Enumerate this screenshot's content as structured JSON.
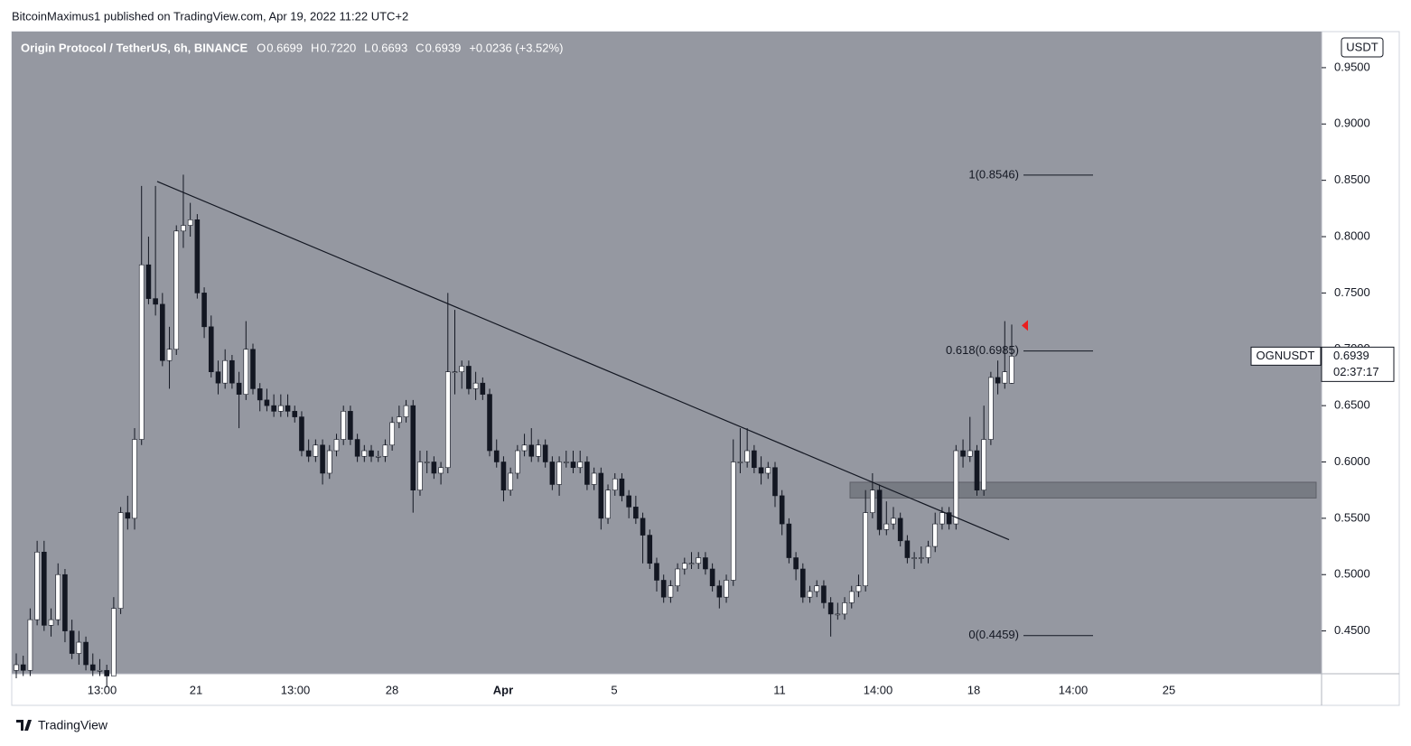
{
  "header": "BitcoinMaximus1 published on TradingView.com, Apr 19, 2022 11:22 UTC+2",
  "footer": "TradingView",
  "chart_data": {
    "type": "candlestick",
    "title": "Origin Protocol / TetherUS, 6h, BINANCE",
    "legend": [
      [
        "O",
        "0.6699"
      ],
      [
        "H",
        "0.7220"
      ],
      [
        "L",
        "0.6693"
      ],
      [
        "C",
        "0.6939"
      ]
    ],
    "change": "+0.0236 (+3.52%)",
    "axis_unit": "USDT",
    "symbol": "OGNUSDT",
    "last_price": {
      "value": 0.6939,
      "label": "0.6939"
    },
    "countdown": "02:37:17",
    "ylim": [
      0.412,
      0.982
    ],
    "yticks": [
      {
        "value": 0.45,
        "label": "0.4500"
      },
      {
        "value": 0.5,
        "label": "0.5000"
      },
      {
        "value": 0.55,
        "label": "0.5500"
      },
      {
        "value": 0.6,
        "label": "0.6000"
      },
      {
        "value": 0.65,
        "label": "0.6500"
      },
      {
        "value": 0.7,
        "label": "0.7000"
      },
      {
        "value": 0.75,
        "label": "0.7500"
      },
      {
        "value": 0.8,
        "label": "0.8000"
      },
      {
        "value": 0.85,
        "label": "0.8500"
      },
      {
        "value": 0.9,
        "label": "0.9000"
      },
      {
        "value": 0.95,
        "label": "0.9500"
      }
    ],
    "xticks": [
      "13:00",
      "21",
      "13:00",
      "28",
      "Apr",
      "5",
      "11",
      "14:00",
      "18",
      "14:00",
      "25"
    ],
    "up_color": "#ffffff",
    "down_color": "#131722",
    "fib_levels": [
      {
        "value": 0.8546,
        "label": "1(0.8546)"
      },
      {
        "value": 0.6985,
        "label": "0.618(0.6985)"
      },
      {
        "value": 0.4459,
        "label": "0(0.4459)"
      }
    ],
    "trendline": [
      0.849,
      0.531
    ],
    "zone": [
      0.568,
      0.582
    ],
    "candles": [
      [
        0.415,
        0.43,
        0.408,
        0.42
      ],
      [
        0.42,
        0.428,
        0.41,
        0.415
      ],
      [
        0.415,
        0.47,
        0.41,
        0.46
      ],
      [
        0.46,
        0.53,
        0.455,
        0.52
      ],
      [
        0.52,
        0.53,
        0.45,
        0.455
      ],
      [
        0.455,
        0.47,
        0.445,
        0.46
      ],
      [
        0.46,
        0.51,
        0.455,
        0.5
      ],
      [
        0.5,
        0.505,
        0.44,
        0.45
      ],
      [
        0.45,
        0.46,
        0.425,
        0.43
      ],
      [
        0.43,
        0.45,
        0.42,
        0.44
      ],
      [
        0.44,
        0.445,
        0.415,
        0.42
      ],
      [
        0.42,
        0.43,
        0.41,
        0.415
      ],
      [
        0.415,
        0.425,
        0.41,
        0.415
      ],
      [
        0.415,
        0.42,
        0.4,
        0.41
      ],
      [
        0.41,
        0.48,
        0.41,
        0.47
      ],
      [
        0.47,
        0.56,
        0.465,
        0.555
      ],
      [
        0.555,
        0.57,
        0.54,
        0.55
      ],
      [
        0.55,
        0.63,
        0.54,
        0.62
      ],
      [
        0.62,
        0.845,
        0.615,
        0.775
      ],
      [
        0.775,
        0.8,
        0.74,
        0.745
      ],
      [
        0.745,
        0.845,
        0.73,
        0.74
      ],
      [
        0.74,
        0.75,
        0.685,
        0.69
      ],
      [
        0.69,
        0.72,
        0.665,
        0.7
      ],
      [
        0.7,
        0.81,
        0.695,
        0.805
      ],
      [
        0.805,
        0.855,
        0.79,
        0.81
      ],
      [
        0.81,
        0.83,
        0.8,
        0.815
      ],
      [
        0.815,
        0.82,
        0.745,
        0.75
      ],
      [
        0.75,
        0.755,
        0.71,
        0.72
      ],
      [
        0.72,
        0.73,
        0.675,
        0.68
      ],
      [
        0.68,
        0.69,
        0.66,
        0.67
      ],
      [
        0.67,
        0.7,
        0.665,
        0.69
      ],
      [
        0.69,
        0.695,
        0.665,
        0.67
      ],
      [
        0.67,
        0.68,
        0.63,
        0.66
      ],
      [
        0.66,
        0.725,
        0.655,
        0.7
      ],
      [
        0.7,
        0.705,
        0.66,
        0.665
      ],
      [
        0.665,
        0.67,
        0.645,
        0.655
      ],
      [
        0.655,
        0.665,
        0.645,
        0.65
      ],
      [
        0.65,
        0.66,
        0.64,
        0.645
      ],
      [
        0.645,
        0.66,
        0.64,
        0.65
      ],
      [
        0.65,
        0.66,
        0.64,
        0.645
      ],
      [
        0.645,
        0.65,
        0.635,
        0.64
      ],
      [
        0.64,
        0.645,
        0.605,
        0.61
      ],
      [
        0.61,
        0.62,
        0.6,
        0.605
      ],
      [
        0.605,
        0.62,
        0.6,
        0.615
      ],
      [
        0.615,
        0.62,
        0.58,
        0.59
      ],
      [
        0.59,
        0.615,
        0.585,
        0.61
      ],
      [
        0.61,
        0.625,
        0.605,
        0.62
      ],
      [
        0.62,
        0.65,
        0.615,
        0.645
      ],
      [
        0.645,
        0.65,
        0.615,
        0.62
      ],
      [
        0.62,
        0.625,
        0.6,
        0.605
      ],
      [
        0.605,
        0.615,
        0.6,
        0.61
      ],
      [
        0.61,
        0.615,
        0.6,
        0.605
      ],
      [
        0.605,
        0.61,
        0.6,
        0.605
      ],
      [
        0.605,
        0.62,
        0.6,
        0.615
      ],
      [
        0.615,
        0.64,
        0.61,
        0.635
      ],
      [
        0.635,
        0.65,
        0.63,
        0.64
      ],
      [
        0.64,
        0.655,
        0.635,
        0.65
      ],
      [
        0.65,
        0.655,
        0.555,
        0.575
      ],
      [
        0.575,
        0.61,
        0.57,
        0.6
      ],
      [
        0.6,
        0.61,
        0.59,
        0.6
      ],
      [
        0.6,
        0.605,
        0.585,
        0.59
      ],
      [
        0.59,
        0.6,
        0.58,
        0.595
      ],
      [
        0.595,
        0.75,
        0.59,
        0.68
      ],
      [
        0.68,
        0.735,
        0.66,
        0.68
      ],
      [
        0.68,
        0.69,
        0.665,
        0.685
      ],
      [
        0.685,
        0.69,
        0.66,
        0.665
      ],
      [
        0.665,
        0.68,
        0.655,
        0.67
      ],
      [
        0.67,
        0.675,
        0.655,
        0.66
      ],
      [
        0.66,
        0.665,
        0.605,
        0.61
      ],
      [
        0.61,
        0.62,
        0.595,
        0.6
      ],
      [
        0.6,
        0.605,
        0.565,
        0.575
      ],
      [
        0.575,
        0.595,
        0.57,
        0.59
      ],
      [
        0.59,
        0.615,
        0.585,
        0.61
      ],
      [
        0.61,
        0.625,
        0.605,
        0.615
      ],
      [
        0.615,
        0.63,
        0.6,
        0.605
      ],
      [
        0.605,
        0.62,
        0.6,
        0.615
      ],
      [
        0.615,
        0.62,
        0.595,
        0.6
      ],
      [
        0.6,
        0.605,
        0.575,
        0.58
      ],
      [
        0.58,
        0.605,
        0.57,
        0.6
      ],
      [
        0.6,
        0.61,
        0.595,
        0.6
      ],
      [
        0.6,
        0.61,
        0.59,
        0.595
      ],
      [
        0.595,
        0.61,
        0.59,
        0.6
      ],
      [
        0.6,
        0.605,
        0.575,
        0.58
      ],
      [
        0.58,
        0.595,
        0.575,
        0.59
      ],
      [
        0.59,
        0.595,
        0.54,
        0.55
      ],
      [
        0.55,
        0.58,
        0.545,
        0.575
      ],
      [
        0.575,
        0.59,
        0.57,
        0.585
      ],
      [
        0.585,
        0.59,
        0.565,
        0.57
      ],
      [
        0.57,
        0.575,
        0.55,
        0.56
      ],
      [
        0.56,
        0.57,
        0.545,
        0.55
      ],
      [
        0.55,
        0.555,
        0.51,
        0.535
      ],
      [
        0.535,
        0.54,
        0.505,
        0.51
      ],
      [
        0.51,
        0.515,
        0.485,
        0.495
      ],
      [
        0.495,
        0.5,
        0.475,
        0.48
      ],
      [
        0.48,
        0.495,
        0.475,
        0.49
      ],
      [
        0.49,
        0.51,
        0.485,
        0.505
      ],
      [
        0.505,
        0.515,
        0.5,
        0.51
      ],
      [
        0.51,
        0.52,
        0.505,
        0.51
      ],
      [
        0.51,
        0.52,
        0.505,
        0.515
      ],
      [
        0.515,
        0.52,
        0.5,
        0.505
      ],
      [
        0.505,
        0.51,
        0.485,
        0.49
      ],
      [
        0.49,
        0.495,
        0.47,
        0.48
      ],
      [
        0.48,
        0.5,
        0.475,
        0.495
      ],
      [
        0.495,
        0.62,
        0.49,
        0.6
      ],
      [
        0.6,
        0.63,
        0.59,
        0.6
      ],
      [
        0.6,
        0.63,
        0.595,
        0.61
      ],
      [
        0.61,
        0.615,
        0.59,
        0.595
      ],
      [
        0.595,
        0.605,
        0.58,
        0.59
      ],
      [
        0.59,
        0.6,
        0.585,
        0.595
      ],
      [
        0.595,
        0.6,
        0.56,
        0.57
      ],
      [
        0.57,
        0.575,
        0.535,
        0.545
      ],
      [
        0.545,
        0.55,
        0.51,
        0.515
      ],
      [
        0.515,
        0.52,
        0.495,
        0.505
      ],
      [
        0.505,
        0.51,
        0.475,
        0.48
      ],
      [
        0.48,
        0.49,
        0.475,
        0.485
      ],
      [
        0.485,
        0.495,
        0.48,
        0.49
      ],
      [
        0.49,
        0.495,
        0.47,
        0.475
      ],
      [
        0.475,
        0.48,
        0.445,
        0.465
      ],
      [
        0.465,
        0.475,
        0.46,
        0.465
      ],
      [
        0.465,
        0.48,
        0.46,
        0.475
      ],
      [
        0.475,
        0.49,
        0.47,
        0.485
      ],
      [
        0.485,
        0.5,
        0.48,
        0.49
      ],
      [
        0.49,
        0.575,
        0.485,
        0.555
      ],
      [
        0.555,
        0.59,
        0.55,
        0.575
      ],
      [
        0.575,
        0.58,
        0.535,
        0.54
      ],
      [
        0.54,
        0.565,
        0.535,
        0.545
      ],
      [
        0.545,
        0.56,
        0.54,
        0.55
      ],
      [
        0.55,
        0.555,
        0.525,
        0.53
      ],
      [
        0.53,
        0.535,
        0.51,
        0.515
      ],
      [
        0.515,
        0.52,
        0.505,
        0.515
      ],
      [
        0.515,
        0.525,
        0.51,
        0.515
      ],
      [
        0.515,
        0.53,
        0.51,
        0.525
      ],
      [
        0.525,
        0.555,
        0.52,
        0.545
      ],
      [
        0.545,
        0.56,
        0.54,
        0.555
      ],
      [
        0.555,
        0.56,
        0.54,
        0.545
      ],
      [
        0.545,
        0.615,
        0.54,
        0.61
      ],
      [
        0.61,
        0.62,
        0.595,
        0.605
      ],
      [
        0.605,
        0.64,
        0.6,
        0.61
      ],
      [
        0.61,
        0.615,
        0.57,
        0.575
      ],
      [
        0.575,
        0.65,
        0.57,
        0.62
      ],
      [
        0.62,
        0.68,
        0.615,
        0.675
      ],
      [
        0.675,
        0.69,
        0.66,
        0.67
      ],
      [
        0.67,
        0.725,
        0.665,
        0.68
      ],
      [
        0.6699,
        0.722,
        0.6693,
        0.6939
      ]
    ]
  }
}
